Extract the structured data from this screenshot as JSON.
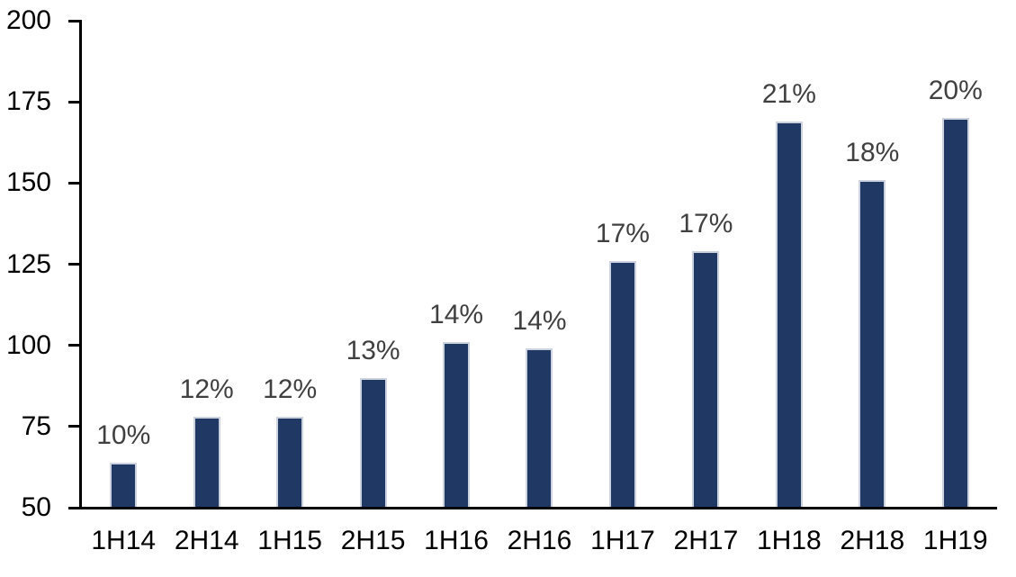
{
  "chart_data": {
    "type": "bar",
    "title": "",
    "categories": [
      "1H14",
      "2H14",
      "1H15",
      "2H15",
      "1H16",
      "2H16",
      "1H17",
      "2H17",
      "1H18",
      "2H18",
      "1H19"
    ],
    "values": [
      64,
      78,
      78,
      90,
      101,
      99,
      126,
      129,
      169,
      151,
      170
    ],
    "bar_labels": [
      "10%",
      "12%",
      "12%",
      "13%",
      "14%",
      "14%",
      "17%",
      "17%",
      "21%",
      "18%",
      "20%"
    ],
    "ylim": [
      50,
      200
    ],
    "yticks": [
      50,
      75,
      100,
      125,
      150,
      175,
      200
    ],
    "xlabel": "",
    "ylabel": "",
    "grid": false,
    "legend": "none",
    "colors": {
      "bar_fill": "#1F3864",
      "bar_border": "#CCD3DE",
      "data_label": "#404040",
      "axis_text": "#000000",
      "axis_line": "#000000"
    }
  }
}
